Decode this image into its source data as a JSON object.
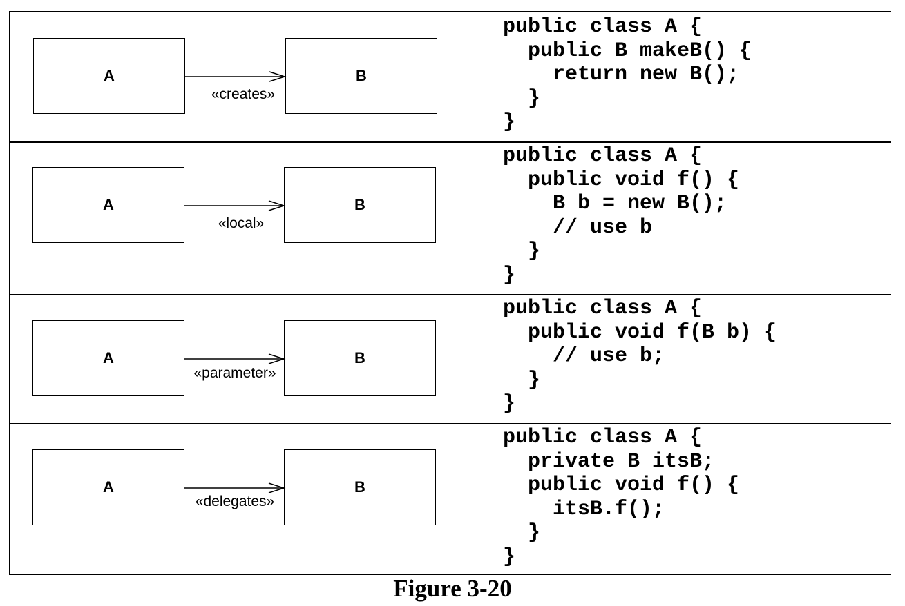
{
  "rows": [
    {
      "class_a": "A",
      "class_b": "B",
      "stereotype": "«creates»",
      "code": "public class A {\n  public B makeB() {\n    return new B();\n  }\n}"
    },
    {
      "class_a": "A",
      "class_b": "B",
      "stereotype": "«local»",
      "code": "public class A {\n  public void f() {\n    B b = new B();\n    // use b\n  }\n}"
    },
    {
      "class_a": "A",
      "class_b": "B",
      "stereotype": "«parameter»",
      "code": "public class A {\n  public void f(B b) {\n    // use b;\n  }\n}"
    },
    {
      "class_a": "A",
      "class_b": "B",
      "stereotype": "«delegates»",
      "code": "public class A {\n  private B itsB;\n  public void f() {\n    itsB.f();\n  }\n}"
    }
  ],
  "caption": "Figure 3-20"
}
